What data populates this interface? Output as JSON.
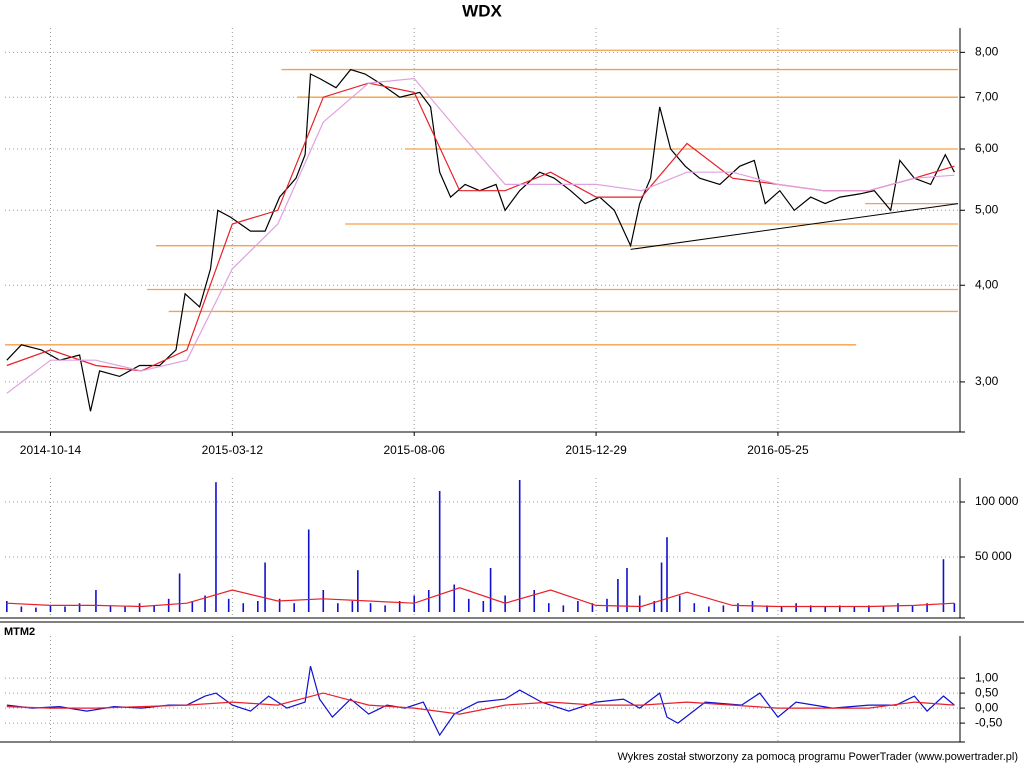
{
  "chart_data": [
    {
      "type": "line",
      "title": "WDX",
      "log_y": true,
      "grid": true,
      "xlim": [
        -25,
        499
      ],
      "xticks": [
        {
          "value": 0,
          "label": "2014-10-14"
        },
        {
          "value": 100,
          "label": "2015-03-12"
        },
        {
          "value": 200,
          "label": "2015-08-06"
        },
        {
          "value": 300,
          "label": "2015-12-29"
        },
        {
          "value": 400,
          "label": "2016-05-25"
        }
      ],
      "ylim": [
        2.6,
        8.25
      ],
      "yticks": [
        {
          "value": 3,
          "label": "3,00"
        },
        {
          "value": 4,
          "label": "4,00"
        },
        {
          "value": 5,
          "label": "5,00"
        },
        {
          "value": 6,
          "label": "6,00"
        },
        {
          "value": 7,
          "label": "7,00"
        },
        {
          "value": 8,
          "label": "8,00"
        }
      ],
      "series": [
        {
          "color": "#000000",
          "x": [
            -24,
            -16,
            -5,
            5,
            16,
            22,
            27,
            38,
            49,
            60,
            69,
            74,
            82,
            88,
            92,
            99,
            110,
            118,
            126,
            135,
            140,
            143,
            148,
            157,
            165,
            173,
            181,
            192,
            203,
            209,
            214,
            220,
            228,
            236,
            245,
            250,
            258,
            269,
            277,
            286,
            294,
            302,
            310,
            319,
            324,
            330,
            335,
            341,
            349,
            357,
            368,
            379,
            387,
            393,
            401,
            409,
            418,
            426,
            434,
            445,
            453,
            462,
            467,
            475,
            484,
            492,
            497
          ],
          "values": [
            3.2,
            3.35,
            3.3,
            3.2,
            3.25,
            2.75,
            3.1,
            3.05,
            3.15,
            3.15,
            3.3,
            3.9,
            3.75,
            4.2,
            5.0,
            4.9,
            4.7,
            4.7,
            5.2,
            5.5,
            5.9,
            7.5,
            7.4,
            7.2,
            7.6,
            7.5,
            7.3,
            7.0,
            7.1,
            6.8,
            5.6,
            5.2,
            5.4,
            5.3,
            5.4,
            5.0,
            5.3,
            5.6,
            5.5,
            5.3,
            5.1,
            5.2,
            5.0,
            4.5,
            5.1,
            5.5,
            6.8,
            6.0,
            5.7,
            5.5,
            5.4,
            5.7,
            5.8,
            5.1,
            5.3,
            5.0,
            5.2,
            5.1,
            5.2,
            5.25,
            5.3,
            5.0,
            5.8,
            5.5,
            5.4,
            5.9,
            5.6
          ]
        },
        {
          "color": "#e8202a",
          "x": [
            -24,
            0,
            25,
            50,
            75,
            100,
            125,
            150,
            175,
            200,
            225,
            250,
            275,
            300,
            325,
            350,
            375,
            400,
            425,
            450,
            475,
            497
          ],
          "values": [
            3.15,
            3.3,
            3.15,
            3.1,
            3.3,
            4.8,
            5.0,
            7.0,
            7.3,
            7.1,
            5.3,
            5.3,
            5.6,
            5.2,
            5.2,
            6.1,
            5.5,
            5.4,
            5.3,
            5.3,
            5.5,
            5.7
          ]
        },
        {
          "color": "#e0a0e0",
          "x": [
            -24,
            0,
            25,
            50,
            75,
            100,
            125,
            150,
            175,
            200,
            225,
            250,
            275,
            300,
            325,
            350,
            375,
            400,
            425,
            450,
            475,
            497
          ],
          "values": [
            2.9,
            3.2,
            3.2,
            3.1,
            3.2,
            4.2,
            4.8,
            6.5,
            7.3,
            7.4,
            6.3,
            5.4,
            5.4,
            5.4,
            5.3,
            5.6,
            5.6,
            5.4,
            5.3,
            5.3,
            5.5,
            5.55
          ]
        }
      ],
      "level_color": "#f5a04a",
      "levels": [
        {
          "y": 8.05,
          "x": [
            143,
            499
          ]
        },
        {
          "y": 7.6,
          "x": [
            127,
            499
          ]
        },
        {
          "y": 7.0,
          "x": [
            136,
            499
          ]
        },
        {
          "y": 6.0,
          "x": [
            195,
            499
          ]
        },
        {
          "y": 5.1,
          "x": [
            448,
            499
          ]
        },
        {
          "y": 4.8,
          "x": [
            162,
            499
          ]
        },
        {
          "y": 4.5,
          "x": [
            58,
            499
          ]
        },
        {
          "y": 3.95,
          "x": [
            53,
            499
          ]
        },
        {
          "y": 3.7,
          "x": [
            65,
            499
          ]
        },
        {
          "y": 3.35,
          "x": [
            -25,
            443
          ]
        }
      ],
      "trendline": {
        "color": "#000000",
        "x": [
          319,
          499
        ],
        "y": [
          4.45,
          5.1
        ]
      }
    },
    {
      "type": "bar",
      "grid": true,
      "xlim": [
        -25,
        499
      ],
      "ylim": [
        0,
        120000
      ],
      "yticks": [
        {
          "value": 50000,
          "label": "50 000"
        },
        {
          "value": 100000,
          "label": "100 000"
        }
      ],
      "series": [
        {
          "color": "#1010d0",
          "x": [
            -24,
            -16,
            -8,
            0,
            8,
            16,
            25,
            33,
            41,
            49,
            57,
            65,
            71,
            78,
            85,
            91,
            98,
            106,
            114,
            118,
            126,
            134,
            142,
            150,
            158,
            166,
            169,
            176,
            184,
            192,
            200,
            208,
            214,
            222,
            230,
            238,
            242,
            250,
            258,
            266,
            274,
            282,
            290,
            298,
            306,
            312,
            317,
            324,
            332,
            336,
            339,
            346,
            354,
            362,
            370,
            378,
            386,
            394,
            402,
            410,
            418,
            426,
            434,
            442,
            450,
            458,
            466,
            474,
            482,
            491,
            497
          ],
          "values": [
            10000,
            5000,
            4000,
            6000,
            5000,
            8000,
            20000,
            6000,
            5000,
            8000,
            6000,
            12000,
            35000,
            10000,
            15000,
            118000,
            12000,
            8000,
            10000,
            45000,
            12000,
            8000,
            75000,
            20000,
            8000,
            10000,
            38000,
            8000,
            6000,
            10000,
            15000,
            20000,
            110000,
            25000,
            12000,
            10000,
            40000,
            15000,
            120000,
            20000,
            8000,
            6000,
            10000,
            8000,
            12000,
            30000,
            40000,
            15000,
            10000,
            45000,
            68000,
            15000,
            8000,
            5000,
            6000,
            8000,
            10000,
            6000,
            5000,
            8000,
            6000,
            5000,
            6000,
            5000,
            6000,
            5000,
            8000,
            6000,
            8000,
            48000,
            8000
          ]
        },
        {
          "type": "line",
          "color": "#e8202a",
          "x": [
            -24,
            0,
            25,
            50,
            75,
            100,
            125,
            150,
            175,
            200,
            225,
            250,
            275,
            300,
            325,
            350,
            375,
            400,
            425,
            450,
            475,
            497
          ],
          "values": [
            8000,
            6000,
            6000,
            5000,
            8000,
            20000,
            10000,
            12000,
            10000,
            8000,
            22000,
            8000,
            20000,
            6000,
            5000,
            18000,
            6000,
            5000,
            5000,
            5000,
            6000,
            8000
          ]
        }
      ]
    },
    {
      "type": "line",
      "label": "MTM2",
      "grid": true,
      "xlim": [
        -25,
        499
      ],
      "ylim": [
        -1.13,
        2.27
      ],
      "yticks": [
        {
          "value": -0.5,
          "label": "-0,50"
        },
        {
          "value": 0,
          "label": "0,00"
        },
        {
          "value": 0.5,
          "label": "0,50"
        },
        {
          "value": 1,
          "label": "1,00"
        }
      ],
      "series": [
        {
          "color": "#1010d0",
          "x": [
            -24,
            -10,
            5,
            20,
            35,
            50,
            65,
            75,
            85,
            91,
            100,
            110,
            120,
            130,
            140,
            143,
            148,
            155,
            165,
            175,
            185,
            195,
            205,
            210,
            214,
            222,
            235,
            250,
            258,
            270,
            285,
            300,
            315,
            324,
            335,
            339,
            345,
            360,
            380,
            390,
            400,
            410,
            430,
            450,
            465,
            475,
            482,
            491,
            497
          ],
          "values": [
            0.1,
            0,
            0.05,
            -0.1,
            0.05,
            0,
            0.1,
            0.1,
            0.4,
            0.5,
            0.1,
            -0.1,
            0.4,
            0,
            0.2,
            1.4,
            0.3,
            -0.3,
            0.3,
            -0.2,
            0.1,
            0,
            0.2,
            -0.4,
            -0.9,
            -0.2,
            0.2,
            0.3,
            0.6,
            0.2,
            -0.1,
            0.2,
            0.3,
            0,
            0.5,
            -0.3,
            -0.5,
            0.2,
            0.1,
            0.5,
            -0.3,
            0.2,
            0,
            0.1,
            0.1,
            0.4,
            -0.1,
            0.4,
            0.1
          ]
        },
        {
          "color": "#e8202a",
          "x": [
            -24,
            0,
            25,
            50,
            75,
            100,
            125,
            150,
            175,
            200,
            225,
            250,
            275,
            300,
            325,
            350,
            375,
            400,
            425,
            450,
            475,
            497
          ],
          "values": [
            0.05,
            0,
            0,
            0.05,
            0.1,
            0.2,
            0.1,
            0.5,
            0.1,
            0,
            -0.2,
            0.1,
            0.2,
            0.1,
            0.1,
            0.2,
            0.1,
            0,
            0,
            0,
            0.2,
            0.1
          ]
        }
      ]
    }
  ],
  "footer": "Wykres został stworzony za pomocą programu PowerTrader (www.powertrader.pl)"
}
